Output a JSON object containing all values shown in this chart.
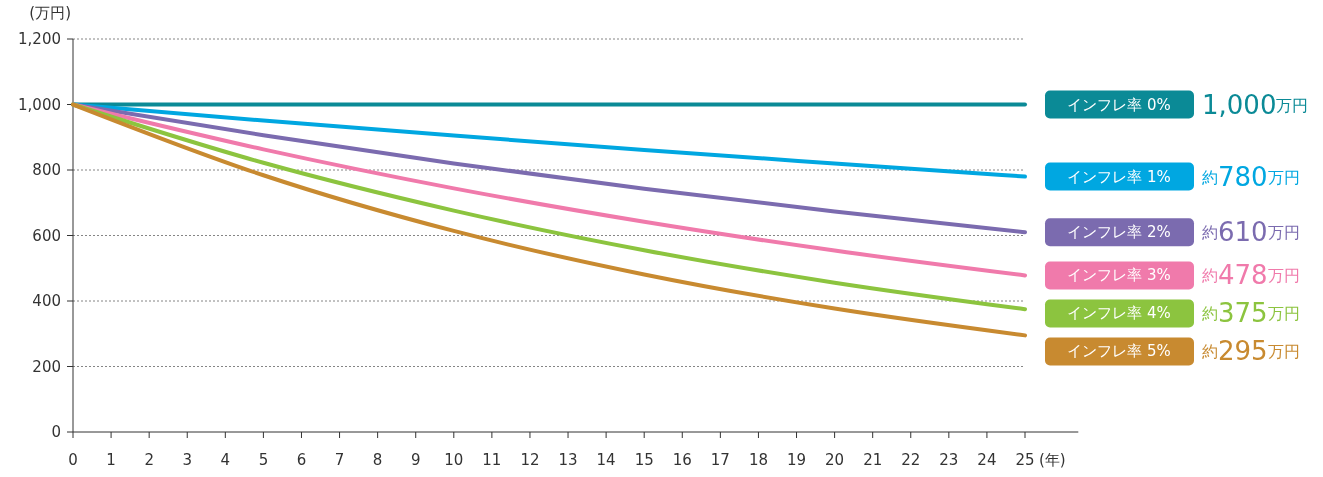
{
  "chart_data": {
    "type": "line",
    "ylabel": "(万円)",
    "xlabel": "(年)",
    "x": [
      0,
      5,
      10,
      15,
      20,
      25
    ],
    "xlim": [
      0,
      26.4
    ],
    "xticks": [
      0,
      1,
      2,
      3,
      4,
      5,
      6,
      7,
      8,
      9,
      10,
      11,
      12,
      13,
      14,
      15,
      16,
      17,
      18,
      19,
      20,
      21,
      22,
      23,
      24,
      25
    ],
    "ylim": [
      0,
      1200
    ],
    "yticks": [
      0,
      200,
      400,
      600,
      800,
      {
        "value": 1000,
        "label": "1,000"
      },
      {
        "value": 1200,
        "label": "1,200"
      }
    ],
    "grid": "y",
    "legend": "right",
    "line_style": "solid",
    "marker": "none",
    "series": [
      {
        "name": "インフレ率 0%",
        "color": "#0b8a96",
        "values": [
          1000,
          1000,
          1000,
          1000,
          1000,
          1000
        ]
      },
      {
        "name": "インフレ率 1%",
        "color": "#00a7e1",
        "values": [
          1000,
          951,
          905,
          861,
          820,
          780
        ]
      },
      {
        "name": "インフレ率 2%",
        "color": "#7b6baf",
        "values": [
          1000,
          906,
          820,
          743,
          673,
          610
        ]
      },
      {
        "name": "インフレ率 3%",
        "color": "#f07aab",
        "values": [
          1000,
          863,
          744,
          642,
          554,
          478
        ]
      },
      {
        "name": "インフレ率 4%",
        "color": "#8cc43f",
        "values": [
          1000,
          822,
          676,
          555,
          456,
          375
        ]
      },
      {
        "name": "インフレ率 5%",
        "color": "#c88a30",
        "values": [
          1000,
          784,
          614,
          481,
          377,
          295
        ]
      }
    ],
    "annotations": [
      "1,000万円",
      "約780万円",
      "約610万円",
      "約478万円",
      "約375万円",
      "約295万円"
    ]
  }
}
